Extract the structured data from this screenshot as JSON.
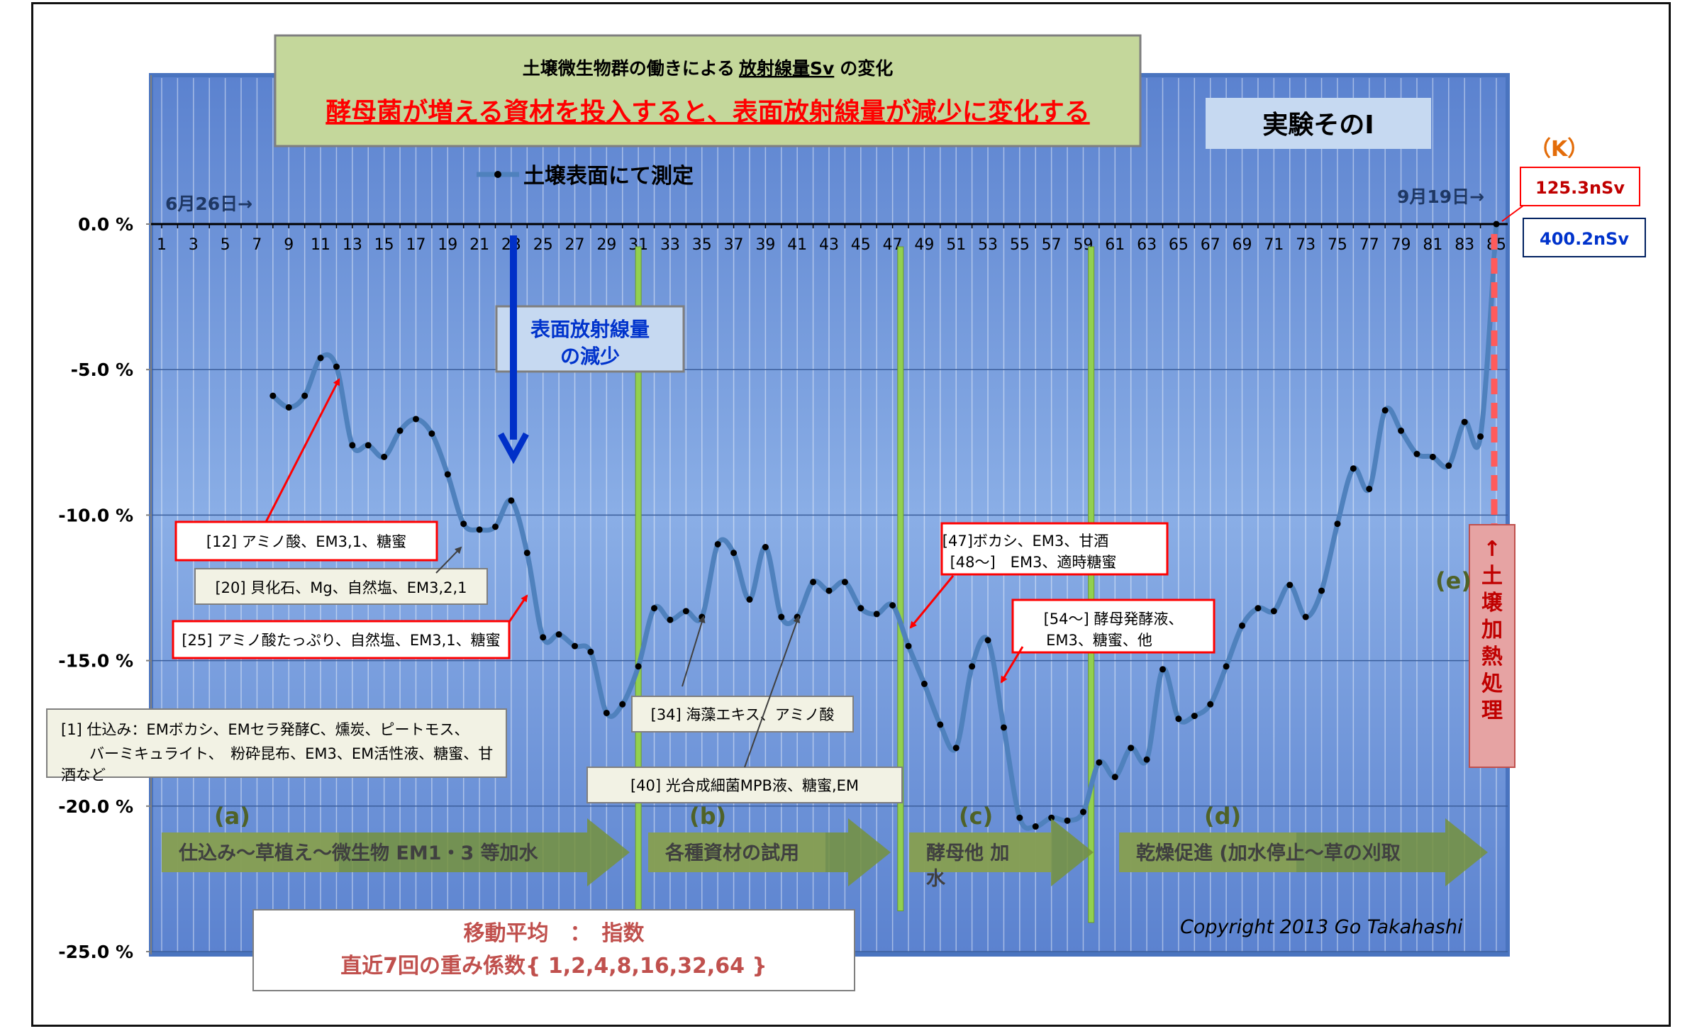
{
  "chart_data": {
    "type": "line",
    "title_line1_prefix": "土壌微生物群の働きによる",
    "title_line1_quantity": "放射線量Sv",
    "title_line1_suffix": "の変化",
    "title_line2": "酵母菌が増える資材を投入すると、表面放射線量が減少に変化する",
    "experiment_label": "実験そのⅠ",
    "legend": "土壌表面にて測定",
    "x_ticks": [
      1,
      3,
      5,
      7,
      9,
      11,
      13,
      15,
      17,
      19,
      21,
      23,
      25,
      27,
      29,
      31,
      33,
      35,
      37,
      39,
      41,
      43,
      45,
      47,
      49,
      51,
      53,
      55,
      57,
      59,
      61,
      63,
      65,
      67,
      69,
      71,
      73,
      75,
      77,
      79,
      81,
      83,
      85
    ],
    "xlim": [
      1,
      85
    ],
    "y_ticks": [
      "0.0 %",
      "-5.0 %",
      "-10.0 %",
      "-15.0 %",
      "-20.0 %",
      "-25.0 %"
    ],
    "ylim": [
      -25,
      0
    ],
    "start_date_label": "6月26日→",
    "end_date_label": "9月19日→",
    "series": [
      {
        "name": "土壌表面にて測定",
        "color": "#4f81bd",
        "x": [
          8,
          9,
          10,
          11,
          12,
          13,
          14,
          15,
          16,
          17,
          18,
          19,
          20,
          21,
          22,
          23,
          24,
          25,
          26,
          27,
          28,
          29,
          30,
          31,
          32,
          33,
          34,
          35,
          36,
          37,
          38,
          39,
          40,
          41,
          42,
          43,
          44,
          45,
          46,
          47,
          48,
          49,
          50,
          51,
          52,
          53,
          54,
          55,
          56,
          57,
          58,
          59,
          60,
          61,
          62,
          63,
          64,
          65,
          66,
          67,
          68,
          69,
          70,
          71,
          72,
          73,
          74,
          75,
          76,
          77,
          78,
          79,
          80,
          81,
          82,
          83,
          84,
          85
        ],
        "y": [
          -5.9,
          -6.3,
          -5.9,
          -4.6,
          -4.9,
          -7.6,
          -7.6,
          -8.0,
          -7.1,
          -6.7,
          -7.2,
          -8.6,
          -10.3,
          -10.5,
          -10.4,
          -9.5,
          -11.3,
          -14.2,
          -14.1,
          -14.5,
          -14.7,
          -16.8,
          -16.5,
          -15.2,
          -13.2,
          -13.6,
          -13.3,
          -13.5,
          -11.0,
          -11.3,
          -12.9,
          -11.1,
          -13.5,
          -13.5,
          -12.3,
          -12.6,
          -12.3,
          -13.2,
          -13.4,
          -13.1,
          -14.5,
          -15.8,
          -17.2,
          -18.0,
          -15.2,
          -14.3,
          -17.3,
          -20.4,
          -20.7,
          -20.4,
          -20.5,
          -20.2,
          -18.5,
          -19.0,
          -18.0,
          -18.4,
          -15.3,
          -17.0,
          -16.9,
          -16.5,
          -15.2,
          -13.8,
          -13.2,
          -13.3,
          -12.4,
          -13.5,
          -12.6,
          -10.3,
          -8.4,
          -9.1,
          -6.4,
          -7.1,
          -7.9,
          -8.0,
          -8.3,
          -6.8,
          -7.3,
          0.0
        ]
      }
    ],
    "annotations": {
      "reduction_label": [
        "表面放射線量",
        "の減少"
      ],
      "a12": "[12] アミノ酸、EM3,1、糖蜜",
      "a20": "[20] 貝化石、Mg、自然塩、EM3,2,1",
      "a25": "[25] アミノ酸たっぷり、自然塩、EM3,1、糖蜜",
      "a1_line1": "[1] 仕込み：EMボカシ、EMセラ発酵C、燻炭、ピートモス、",
      "a1_line2": "バーミキュライト、　粉砕昆布、EM3、EM活性液、糖蜜、甘",
      "a1_line3": "酒など",
      "a34": "[34] 海藻エキス、アミノ酸",
      "a40": "[40] 光合成細菌MPB液、糖蜜,EM",
      "a47_line1": "[47]ボカシ、EM3、甘酒",
      "a47_line2": "[48～]　EM3、適時糖蜜",
      "a54_line1": "[54～] 酵母発酵液、",
      "a54_line2": "EM3、糖蜜、他",
      "k_label": "（K）",
      "k_value_red": "125.3nSv",
      "k_value_blue": "400.2nSv",
      "heat_treatment": [
        "↑",
        "土",
        "壌",
        "加",
        "熱",
        "処",
        "理"
      ]
    },
    "phases": [
      {
        "letter": "(a)",
        "text": "仕込み～草植え～微生物 EM1・3 等加水"
      },
      {
        "letter": "(b)",
        "text": "各種資材の試用"
      },
      {
        "letter": "(c)",
        "text": "酵母他 加",
        "text2": "水"
      },
      {
        "letter": "(d)",
        "text": "乾燥促進 (加水停止～草の刈取"
      },
      {
        "letter": "(e)",
        "text": ""
      }
    ],
    "moving_average": {
      "line1": "移動平均　：　指数",
      "line2": "直近7回の重み係数{ 1,2,4,8,16,32,64 }"
    },
    "copyright": "Copyright 2013 Go Takahashi",
    "colors": {
      "plot_bg": "#6f95d6",
      "line": "#4f81bd",
      "green_marker": "#92d050",
      "annotation_border": "#ff0000",
      "arrow_green": "#76923c",
      "heat_box": "#e6a3a3"
    }
  }
}
